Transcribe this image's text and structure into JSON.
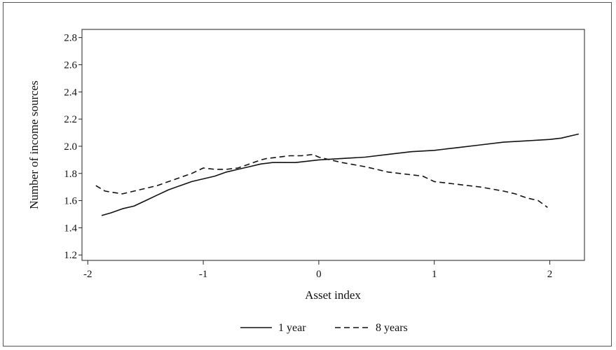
{
  "chart_data": {
    "type": "line",
    "xlabel": "Asset index",
    "ylabel": "Number of income sources",
    "xlim": [
      -2.05,
      2.3
    ],
    "ylim": [
      1.16,
      2.86
    ],
    "x_ticks": [
      "-2",
      "-1",
      "0",
      "1",
      "2"
    ],
    "y_ticks": [
      "1.2",
      "1.4",
      "1.6",
      "1.8",
      "2.0",
      "2.2",
      "2.4",
      "2.6",
      "2.8"
    ],
    "grid": false,
    "legend_position": "bottom",
    "series": [
      {
        "name": "1 year",
        "style": "solid",
        "color": "#111111",
        "x": [
          -1.88,
          -1.8,
          -1.7,
          -1.6,
          -1.5,
          -1.4,
          -1.3,
          -1.2,
          -1.1,
          -1.0,
          -0.9,
          -0.8,
          -0.7,
          -0.6,
          -0.5,
          -0.4,
          -0.3,
          -0.2,
          -0.1,
          0.0,
          0.2,
          0.4,
          0.6,
          0.8,
          1.0,
          1.2,
          1.4,
          1.6,
          1.8,
          2.0,
          2.1,
          2.2,
          2.25
        ],
        "y": [
          1.49,
          1.51,
          1.54,
          1.56,
          1.6,
          1.64,
          1.68,
          1.71,
          1.74,
          1.76,
          1.78,
          1.81,
          1.83,
          1.85,
          1.87,
          1.88,
          1.88,
          1.88,
          1.89,
          1.9,
          1.91,
          1.92,
          1.94,
          1.96,
          1.97,
          1.99,
          2.01,
          2.03,
          2.04,
          2.05,
          2.06,
          2.08,
          2.09
        ]
      },
      {
        "name": "8 years",
        "style": "dashed",
        "color": "#111111",
        "x": [
          -1.93,
          -1.85,
          -1.78,
          -1.7,
          -1.6,
          -1.5,
          -1.4,
          -1.3,
          -1.2,
          -1.1,
          -1.0,
          -0.9,
          -0.8,
          -0.7,
          -0.6,
          -0.5,
          -0.45,
          -0.35,
          -0.25,
          -0.15,
          -0.05,
          0.0,
          0.1,
          0.2,
          0.4,
          0.6,
          0.8,
          0.9,
          1.0,
          1.2,
          1.4,
          1.6,
          1.7,
          1.8,
          1.9,
          1.98
        ],
        "y": [
          1.71,
          1.67,
          1.66,
          1.65,
          1.67,
          1.69,
          1.71,
          1.74,
          1.77,
          1.8,
          1.84,
          1.83,
          1.83,
          1.84,
          1.87,
          1.9,
          1.91,
          1.92,
          1.93,
          1.93,
          1.94,
          1.92,
          1.9,
          1.88,
          1.85,
          1.81,
          1.79,
          1.78,
          1.74,
          1.72,
          1.7,
          1.67,
          1.65,
          1.62,
          1.6,
          1.55
        ]
      }
    ]
  }
}
